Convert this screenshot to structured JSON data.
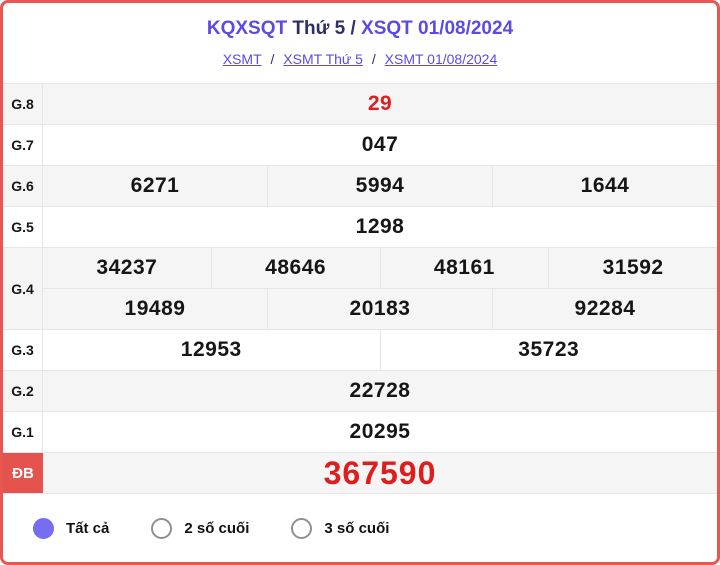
{
  "colors": {
    "accent": "#5b4be6",
    "title_dark": "#2e2e68",
    "red": "#e01d1d",
    "special_bg": "#e4534e",
    "border_red": "#e8574f",
    "stripe": "#f5f5f6",
    "radio_fill": "#766df0"
  },
  "header": {
    "title": {
      "part1": "KQXSQT",
      "part2": " Thứ 5 / ",
      "part3": "XSQT 01/08/2024"
    },
    "breadcrumb": {
      "links": [
        "XSMT",
        "XSMT Thứ 5",
        "XSMT 01/08/2024"
      ],
      "separator": "/"
    }
  },
  "results": {
    "rows": [
      {
        "label": "G.8",
        "tiers": [
          [
            "29"
          ]
        ]
      },
      {
        "label": "G.7",
        "tiers": [
          [
            "047"
          ]
        ]
      },
      {
        "label": "G.6",
        "tiers": [
          [
            "6271",
            "5994",
            "1644"
          ]
        ]
      },
      {
        "label": "G.5",
        "tiers": [
          [
            "1298"
          ]
        ]
      },
      {
        "label": "G.4",
        "tiers": [
          [
            "34237",
            "48646",
            "48161",
            "31592"
          ],
          [
            "19489",
            "20183",
            "92284"
          ]
        ]
      },
      {
        "label": "G.3",
        "tiers": [
          [
            "12953",
            "35723"
          ]
        ]
      },
      {
        "label": "G.2",
        "tiers": [
          [
            "22728"
          ]
        ]
      },
      {
        "label": "G.1",
        "tiers": [
          [
            "20295"
          ]
        ]
      },
      {
        "label": "ĐB",
        "tiers": [
          [
            "367590"
          ]
        ]
      }
    ]
  },
  "filter": {
    "options": [
      {
        "label": "Tất cả",
        "selected": true
      },
      {
        "label": "2 số cuối",
        "selected": false
      },
      {
        "label": "3 số cuối",
        "selected": false
      }
    ]
  }
}
